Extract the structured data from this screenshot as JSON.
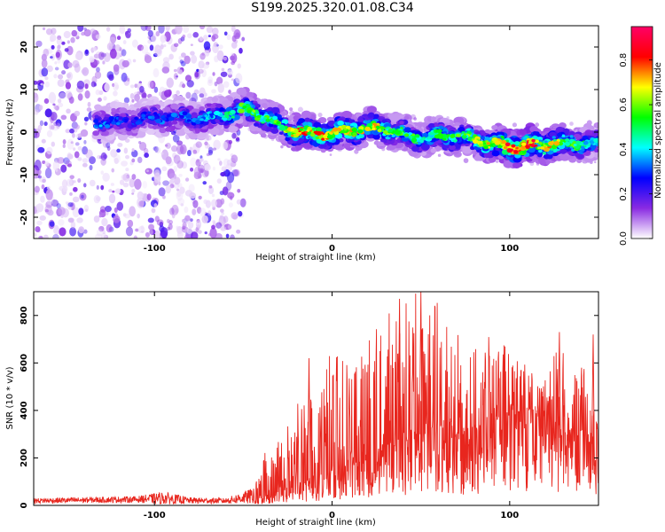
{
  "page_title": "S199.2025.320.01.08.C34",
  "chart_data": [
    {
      "type": "heatmap",
      "name": "spectrogram",
      "title": "S199.2025.320.01.08.C34",
      "xlabel": "Height of straight line (km)",
      "ylabel": "Frequency (Hz)",
      "xlim": [
        -168,
        150
      ],
      "ylim": [
        -25,
        25
      ],
      "xticks": [
        -100,
        0,
        100
      ],
      "yticks": [
        -20,
        -10,
        0,
        10,
        20
      ],
      "xtick_labels": [
        "-100",
        "0",
        "100"
      ],
      "ytick_labels": [
        "-20",
        "-10",
        "0",
        "10",
        "20"
      ],
      "grid": false,
      "colorbar": {
        "label": "Normalized spectral amplitude",
        "range": [
          0,
          0.95
        ],
        "ticks": [
          0.0,
          0.2,
          0.4,
          0.6,
          0.8
        ],
        "tick_labels": [
          "0.0",
          "0.2",
          "0.4",
          "0.6",
          "0.8"
        ],
        "colormap": [
          "#ffffff",
          "#8a2be2",
          "#0000ff",
          "#00ffff",
          "#00ff00",
          "#ffff00",
          "#ff0000",
          "#ff0066"
        ]
      },
      "ridge": {
        "x": [
          -133,
          -120,
          -100,
          -80,
          -65,
          -50,
          -45,
          -35,
          -25,
          -10,
          0,
          10,
          20,
          30,
          40,
          50,
          60,
          70,
          80,
          90,
          100,
          110,
          120,
          130,
          140,
          150
        ],
        "freq": [
          3,
          2.5,
          3,
          3.5,
          4,
          5,
          4.5,
          2.5,
          1,
          0,
          -0.5,
          0,
          0.5,
          1,
          0,
          -1,
          -1,
          -1.5,
          -2,
          -2.5,
          -3,
          -3,
          -3.2,
          -3,
          -2.8,
          -2.5
        ],
        "amplitude": [
          0.35,
          0.3,
          0.3,
          0.35,
          0.4,
          0.55,
          0.6,
          0.5,
          0.65,
          0.75,
          0.7,
          0.65,
          0.7,
          0.6,
          0.55,
          0.5,
          0.55,
          0.55,
          0.6,
          0.7,
          0.85,
          0.9,
          0.75,
          0.6,
          0.5,
          0.45
        ]
      },
      "noise_region_x": [
        -168,
        -50
      ],
      "noise_freq_range": [
        -25,
        25
      ]
    },
    {
      "type": "line",
      "name": "snr",
      "xlabel": "Height of straight line (km)",
      "ylabel": "SNR (10 * v/v)",
      "xlim": [
        -168,
        150
      ],
      "ylim": [
        0,
        900
      ],
      "xticks": [
        -100,
        0,
        100
      ],
      "yticks": [
        0,
        200,
        400,
        600,
        800
      ],
      "xtick_labels": [
        "-100",
        "0",
        "100"
      ],
      "ytick_labels": [
        "0",
        "200",
        "400",
        "600",
        "800"
      ],
      "color": "#e8261e",
      "grid": false,
      "envelope": {
        "x": [
          -168,
          -110,
          -95,
          -80,
          -60,
          -45,
          -38,
          -30,
          -25,
          -15,
          0,
          15,
          30,
          45,
          60,
          75,
          90,
          100,
          110,
          118,
          125,
          130,
          140,
          150
        ],
        "baseline": [
          15,
          20,
          20,
          15,
          15,
          25,
          40,
          60,
          80,
          100,
          150,
          200,
          250,
          300,
          300,
          300,
          350,
          380,
          400,
          400,
          380,
          300,
          280,
          250
        ],
        "peak": [
          40,
          50,
          80,
          45,
          40,
          100,
          220,
          300,
          350,
          500,
          650,
          680,
          800,
          900,
          880,
          780,
          700,
          670,
          630,
          500,
          700,
          650,
          600,
          500
        ]
      },
      "notable_values": [
        {
          "x": 38,
          "y": 870
        },
        {
          "x": 50,
          "y": 900
        },
        {
          "x": 128,
          "y": 730
        },
        {
          "x": -13,
          "y": 620
        },
        {
          "x": 147,
          "y": 720
        }
      ]
    }
  ]
}
